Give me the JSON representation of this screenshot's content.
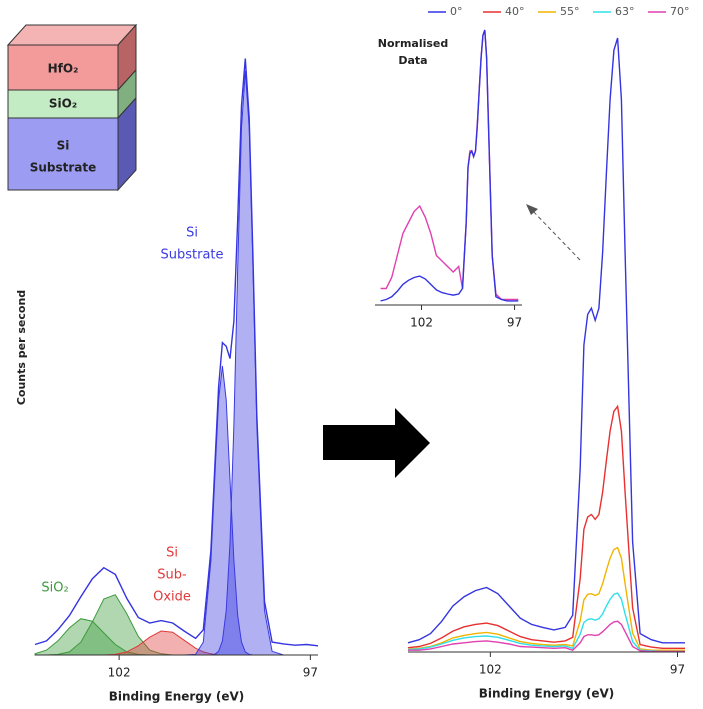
{
  "layer_diagram": {
    "layers": [
      [
        "HfO₂"
      ],
      [
        "SiO₂"
      ],
      [
        "Si",
        "Substrate"
      ]
    ]
  },
  "chart_data": [
    {
      "type": "line",
      "xlabel": "Binding Energy (eV)",
      "ylabel": "Counts per second",
      "x": [
        104.2,
        103.9,
        103.6,
        103.3,
        103.0,
        102.7,
        102.4,
        102.1,
        101.8,
        101.5,
        101.2,
        100.9,
        100.6,
        100.3,
        100.0,
        99.8,
        99.6,
        99.5,
        99.4,
        99.3,
        99.2,
        99.1,
        99.0,
        98.9,
        98.8,
        98.7,
        98.6,
        98.5,
        98.4,
        98.2,
        98.0,
        97.7,
        97.4,
        97.1,
        96.8
      ],
      "xlim": [
        104.2,
        96.8
      ],
      "xticks": [
        102,
        97
      ],
      "ylim": [
        0,
        100
      ],
      "annotations": [
        [
          "SiO₂"
        ],
        [
          "Si",
          "Sub-",
          "Oxide"
        ],
        [
          "Si",
          "Substrate"
        ]
      ],
      "series": [
        {
          "color": "#3c9a3c",
          "filled": true,
          "values": [
            0.2,
            0.8,
            2.3,
            4.4,
            5.9,
            5.5,
            3.6,
            1.7,
            0.5,
            0.1,
            0,
            0,
            0,
            0,
            0,
            0,
            0,
            0,
            0,
            0,
            0,
            0,
            0,
            0,
            0,
            0,
            0,
            0,
            0,
            0,
            0,
            0,
            0,
            0,
            0
          ]
        },
        {
          "color": "#3c9a3c",
          "filled": true,
          "values": [
            0,
            0,
            0.1,
            0.5,
            2.1,
            5.4,
            9.1,
            9.8,
            6.7,
            3.0,
            0.8,
            0.2,
            0,
            0,
            0,
            0,
            0,
            0,
            0,
            0,
            0,
            0,
            0,
            0,
            0,
            0,
            0,
            0,
            0,
            0,
            0,
            0,
            0,
            0,
            0
          ]
        },
        {
          "color": "#e03a3a",
          "filled": true,
          "values": [
            0,
            0,
            0,
            0,
            0,
            0,
            0,
            0.1,
            0.5,
            1.5,
            2.9,
            3.9,
            3.7,
            2.4,
            1.1,
            0.5,
            0.2,
            0.1,
            0,
            0,
            0,
            0,
            0,
            0,
            0,
            0,
            0,
            0,
            0,
            0,
            0,
            0,
            0,
            0,
            0
          ]
        },
        {
          "color": "#3a3ae0",
          "filled": true,
          "values": [
            0,
            0,
            0,
            0,
            0,
            0,
            0,
            0,
            0,
            0,
            0,
            0,
            0,
            0,
            0.1,
            2.1,
            15.3,
            28.5,
            41.5,
            47,
            41.5,
            28.5,
            15.3,
            6.4,
            2.1,
            0.5,
            0.1,
            0,
            0,
            0,
            0,
            0,
            0,
            0,
            0
          ]
        },
        {
          "color": "#3a3ae0",
          "filled": true,
          "values": [
            0,
            0,
            0,
            0,
            0,
            0,
            0,
            0,
            0,
            0,
            0,
            0,
            0,
            0,
            0,
            0,
            0,
            0.1,
            0.6,
            2.3,
            7.2,
            18.2,
            37.5,
            62.9,
            85.7,
            95,
            85.7,
            62.9,
            37.5,
            7.2,
            0.6,
            0,
            0,
            0,
            0
          ]
        },
        {
          "color": "#3434e0",
          "filled": false,
          "values": [
            1.7,
            2.3,
            4.1,
            6.4,
            9.5,
            12.4,
            14.2,
            13.1,
            9.2,
            6.1,
            5.2,
            5.6,
            5.2,
            3.9,
            2.7,
            4.1,
            17.0,
            30.2,
            43.6,
            50.8,
            50.2,
            48.2,
            54.3,
            70.8,
            89.3,
            97,
            87.3,
            64.4,
            39.0,
            8.7,
            2.1,
            1.8,
            1.6,
            1.7,
            1.5
          ]
        }
      ]
    },
    {
      "type": "line",
      "xlabel": "Binding Energy (eV)",
      "legend": "top",
      "x": [
        104.2,
        103.9,
        103.6,
        103.3,
        103.0,
        102.7,
        102.4,
        102.1,
        101.8,
        101.5,
        101.2,
        100.9,
        100.6,
        100.3,
        100.0,
        99.8,
        99.6,
        99.5,
        99.4,
        99.3,
        99.2,
        99.1,
        99.0,
        98.9,
        98.8,
        98.7,
        98.6,
        98.5,
        98.4,
        98.2,
        98.0,
        97.7,
        97.4,
        97.1,
        96.8
      ],
      "xlim": [
        104.2,
        96.8
      ],
      "xticks": [
        102,
        97
      ],
      "ylim": [
        0,
        100
      ],
      "series": [
        {
          "name": "0°",
          "color": "#3434e0",
          "values": [
            1.5,
            2,
            3,
            5,
            7.5,
            9,
            10,
            10.5,
            9.5,
            7.5,
            5.5,
            4.5,
            4,
            3.6,
            4,
            6,
            30,
            50,
            55,
            56,
            54,
            56,
            65,
            78,
            90,
            98,
            100,
            90,
            65,
            18,
            3,
            2,
            1.5,
            1.5,
            1.5
          ]
        },
        {
          "name": "40°",
          "color": "#e83030",
          "values": [
            0.7,
            0.9,
            1.4,
            2.3,
            3.4,
            4.1,
            4.5,
            4.7,
            4.3,
            3.4,
            2.5,
            2.0,
            1.8,
            1.6,
            1.8,
            2.4,
            12,
            20,
            22,
            22.4,
            21.6,
            22.4,
            26,
            31.2,
            36,
            39.2,
            40,
            36,
            26,
            7.2,
            1.2,
            0.8,
            0.6,
            0.6,
            0.6
          ]
        },
        {
          "name": "55°",
          "color": "#f2b400",
          "values": [
            0.5,
            0.6,
            0.9,
            1.5,
            2.3,
            2.7,
            3,
            3.2,
            2.9,
            2.3,
            1.7,
            1.4,
            1.2,
            1.1,
            1.2,
            1.0,
            5.1,
            8.5,
            9.4,
            9.5,
            9.2,
            9.5,
            11.1,
            13.3,
            15.3,
            16.7,
            17,
            15.3,
            11.1,
            3.1,
            0.5,
            0.3,
            0.3,
            0.3,
            0.3
          ]
        },
        {
          "name": "63°",
          "color": "#2ee0ea",
          "values": [
            0.4,
            0.5,
            0.8,
            1.3,
            1.9,
            2.3,
            2.5,
            2.6,
            2.4,
            1.9,
            1.4,
            1.1,
            1.0,
            0.9,
            1.0,
            0.6,
            2.9,
            4.8,
            5.3,
            5.4,
            5.2,
            5.4,
            6.2,
            7.5,
            8.6,
            9.4,
            9.6,
            8.6,
            6.2,
            1.7,
            0.3,
            0.2,
            0.1,
            0.1,
            0.1
          ]
        },
        {
          "name": "70°",
          "color": "#e040b0",
          "values": [
            0.3,
            0.3,
            0.5,
            0.9,
            1.3,
            1.5,
            1.7,
            1.8,
            1.6,
            1.3,
            0.9,
            0.8,
            0.7,
            0.6,
            0.7,
            0.3,
            1.5,
            2.5,
            2.8,
            2.8,
            2.7,
            2.8,
            3.3,
            3.9,
            4.5,
            4.9,
            5,
            4.5,
            3.3,
            0.9,
            0.2,
            0.1,
            0.1,
            0.1,
            0.1
          ]
        }
      ]
    },
    {
      "type": "line",
      "title": [
        "Normalised",
        "Data"
      ],
      "x": [
        104.2,
        103.9,
        103.6,
        103.3,
        103.0,
        102.7,
        102.4,
        102.1,
        101.8,
        101.5,
        101.2,
        100.9,
        100.6,
        100.3,
        100.0,
        99.8,
        99.6,
        99.5,
        99.4,
        99.3,
        99.2,
        99.1,
        99.0,
        98.9,
        98.8,
        98.7,
        98.6,
        98.5,
        98.4,
        98.2,
        98.0,
        97.7,
        97.4,
        97.1,
        96.8
      ],
      "xlim": [
        104.5,
        96.6
      ],
      "xticks": [
        102,
        97
      ],
      "ylim": [
        0,
        1
      ],
      "series": [
        {
          "color": "#e040b0",
          "values": [
            0.06,
            0.06,
            0.1,
            0.18,
            0.26,
            0.3,
            0.34,
            0.36,
            0.32,
            0.26,
            0.18,
            0.16,
            0.14,
            0.12,
            0.14,
            0.06,
            0.3,
            0.5,
            0.56,
            0.56,
            0.54,
            0.56,
            0.66,
            0.78,
            0.9,
            0.98,
            1.0,
            0.9,
            0.66,
            0.18,
            0.04,
            0.02,
            0.02,
            0.02,
            0.02
          ]
        },
        {
          "color": "#3434e0",
          "values": [
            0.015,
            0.02,
            0.03,
            0.05,
            0.075,
            0.09,
            0.1,
            0.105,
            0.095,
            0.075,
            0.055,
            0.045,
            0.04,
            0.036,
            0.04,
            0.06,
            0.3,
            0.5,
            0.55,
            0.56,
            0.54,
            0.56,
            0.65,
            0.78,
            0.9,
            0.98,
            1.0,
            0.9,
            0.65,
            0.18,
            0.03,
            0.02,
            0.015,
            0.015,
            0.015
          ]
        }
      ]
    }
  ]
}
